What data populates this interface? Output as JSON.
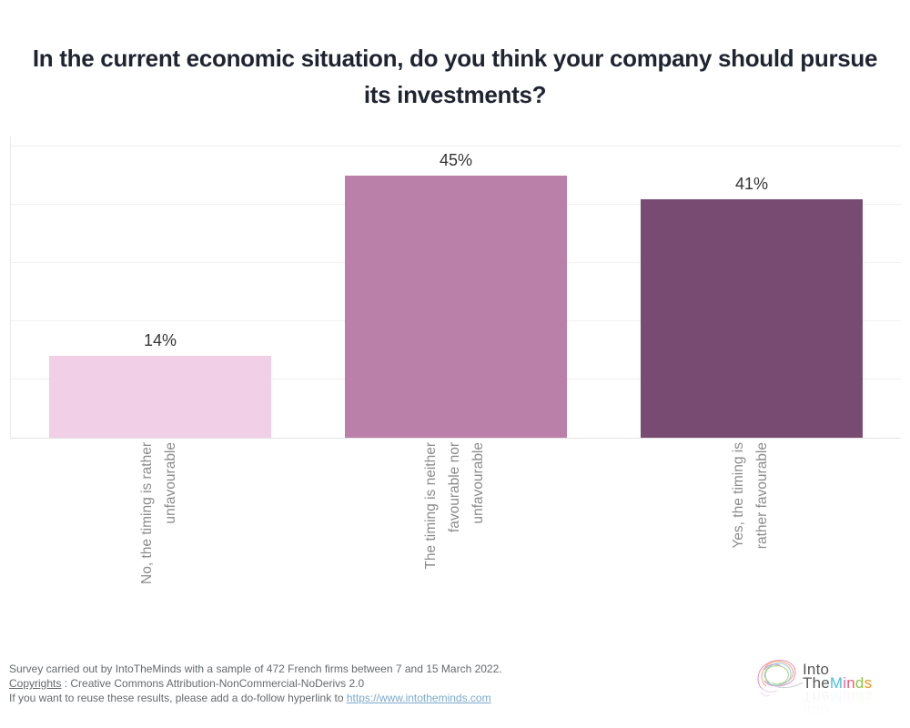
{
  "title": "In the current economic situation, do you think your company should pursue its investments?",
  "chart_data": {
    "type": "bar",
    "title": "In the current economic situation, do you think your company should pursue its investments?",
    "categories": [
      "No, the timing is rather unfavourable",
      "The timing is neither favourable nor unfavourable",
      "Yes, the timing is rather favourable"
    ],
    "categories_wrapped": [
      "No, the timing is rather\nunfavourable",
      "The timing is neither\nfavourable nor\nunfavourable",
      "Yes, the timing is\nrather favourable"
    ],
    "values": [
      14,
      45,
      41
    ],
    "value_labels": [
      "14%",
      "45%",
      "41%"
    ],
    "bar_colors": [
      "#f0cfe7",
      "#bb80a9",
      "#784b72"
    ],
    "xlabel": "",
    "ylabel": "",
    "ylim": [
      0,
      50
    ],
    "grid": "horizontal gridlines every 10%",
    "legend": "none"
  },
  "footer": {
    "line1": "Survey carried out by IntoTheMinds with a sample of 472 French firms between 7 and 15 March 2022.",
    "line2_link": "Copyrights",
    "line2_rest": " : Creative Commons Attribution-NonCommercial-NoDerivs 2.0",
    "line3_text": "If you want to reuse these results, please add a do-follow hyperlink to ",
    "line3_link": "https://www.intotheminds.com"
  },
  "logo": {
    "into": "Into",
    "the": "The",
    "brand": [
      "M",
      "i",
      "n",
      "d",
      "s"
    ],
    "brand_colors": [
      "#49bde6",
      "#f061a7",
      "#ee5b77",
      "#8cc63f",
      "#f7941e"
    ],
    "gray_text_color": "#58585a"
  },
  "colors": {
    "title_text": "#1f2430",
    "axis_label_text": "#8b8b8b",
    "footer_text": "#666a6d",
    "footer_link": "#7ba9cc",
    "gridline": "#f0f0f1"
  }
}
